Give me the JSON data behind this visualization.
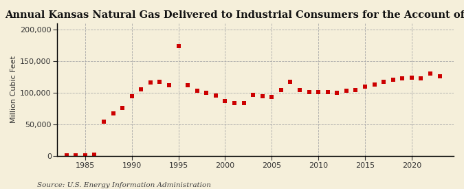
{
  "title": "Annual Kansas Natural Gas Delivered to Industrial Consumers for the Account of Others",
  "ylabel": "Million Cubic Feet",
  "source": "Source: U.S. Energy Information Administration",
  "background_color": "#f5efda",
  "plot_bg_color": "#f5efda",
  "dot_color": "#cc0000",
  "years": [
    1983,
    1984,
    1985,
    1986,
    1987,
    1988,
    1989,
    1990,
    1991,
    1992,
    1993,
    1994,
    1995,
    1996,
    1997,
    1998,
    1999,
    2000,
    2001,
    2002,
    2003,
    2004,
    2005,
    2006,
    2007,
    2008,
    2009,
    2010,
    2011,
    2012,
    2013,
    2014,
    2015,
    2016,
    2017,
    2018,
    2019,
    2020,
    2021,
    2022,
    2023
  ],
  "values": [
    500,
    500,
    400,
    2000,
    54000,
    67000,
    76000,
    95000,
    105000,
    116000,
    118000,
    112000,
    174000,
    112000,
    103000,
    100000,
    96000,
    87000,
    84000,
    84000,
    97000,
    95000,
    93000,
    104000,
    118000,
    104000,
    101000,
    101000,
    101000,
    100000,
    103000,
    104000,
    110000,
    113000,
    118000,
    121000,
    123000,
    124000,
    123000,
    131000,
    126000
  ],
  "xlim": [
    1982,
    2024.5
  ],
  "ylim": [
    0,
    210000
  ],
  "yticks": [
    0,
    50000,
    100000,
    150000,
    200000
  ],
  "xticks": [
    1985,
    1990,
    1995,
    2000,
    2005,
    2010,
    2015,
    2020
  ],
  "grid_color": "#aaaaaa",
  "title_fontsize": 10.5,
  "label_fontsize": 8,
  "tick_fontsize": 8,
  "source_fontsize": 7.5,
  "marker_size": 4
}
